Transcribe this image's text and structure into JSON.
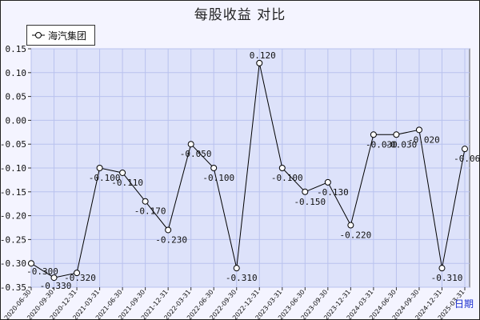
{
  "chart_data": {
    "type": "line",
    "title": "每股收益  对比",
    "legend_position": "top-left",
    "xlabel": "日期",
    "ylabel": "",
    "ylim": [
      -0.35,
      0.15
    ],
    "y_ticks": [
      "0.15",
      "0.10",
      "0.05",
      "0.00",
      "-0.05",
      "-0.10",
      "-0.15",
      "-0.20",
      "-0.25",
      "-0.30",
      "-0.35"
    ],
    "grid": true,
    "categories": [
      "2020-06-30",
      "2020-09-30",
      "2020-12-31",
      "2021-03-31",
      "2021-06-30",
      "2021-09-30",
      "2021-12-31",
      "2022-03-31",
      "2022-06-30",
      "2022-09-30",
      "2022-12-31",
      "2023-03-31",
      "2023-06-30",
      "2023-09-30",
      "2023-12-31",
      "2024-03-31",
      "2024-06-30",
      "2024-09-30",
      "2024-12-31",
      "2025-03-31"
    ],
    "series": [
      {
        "name": "海汽集团",
        "color": "#000000",
        "values": [
          -0.3,
          -0.33,
          -0.32,
          -0.1,
          -0.11,
          -0.17,
          -0.23,
          -0.05,
          -0.1,
          -0.31,
          0.12,
          -0.1,
          -0.15,
          -0.13,
          -0.22,
          -0.03,
          -0.03,
          -0.02,
          -0.31,
          -0.06
        ],
        "labels": [
          "-0.300",
          "-0.330",
          "-0.320",
          "-0.100",
          "-0.110",
          "-0.170",
          "-0.230",
          "-0.050",
          "-0.100",
          "-0.310",
          "0.120",
          "-0.100",
          "-0.150",
          "-0.130",
          "-0.220",
          "-0.030",
          "-0.030",
          "-0.020",
          "-0.310",
          "-0.060"
        ]
      }
    ]
  }
}
